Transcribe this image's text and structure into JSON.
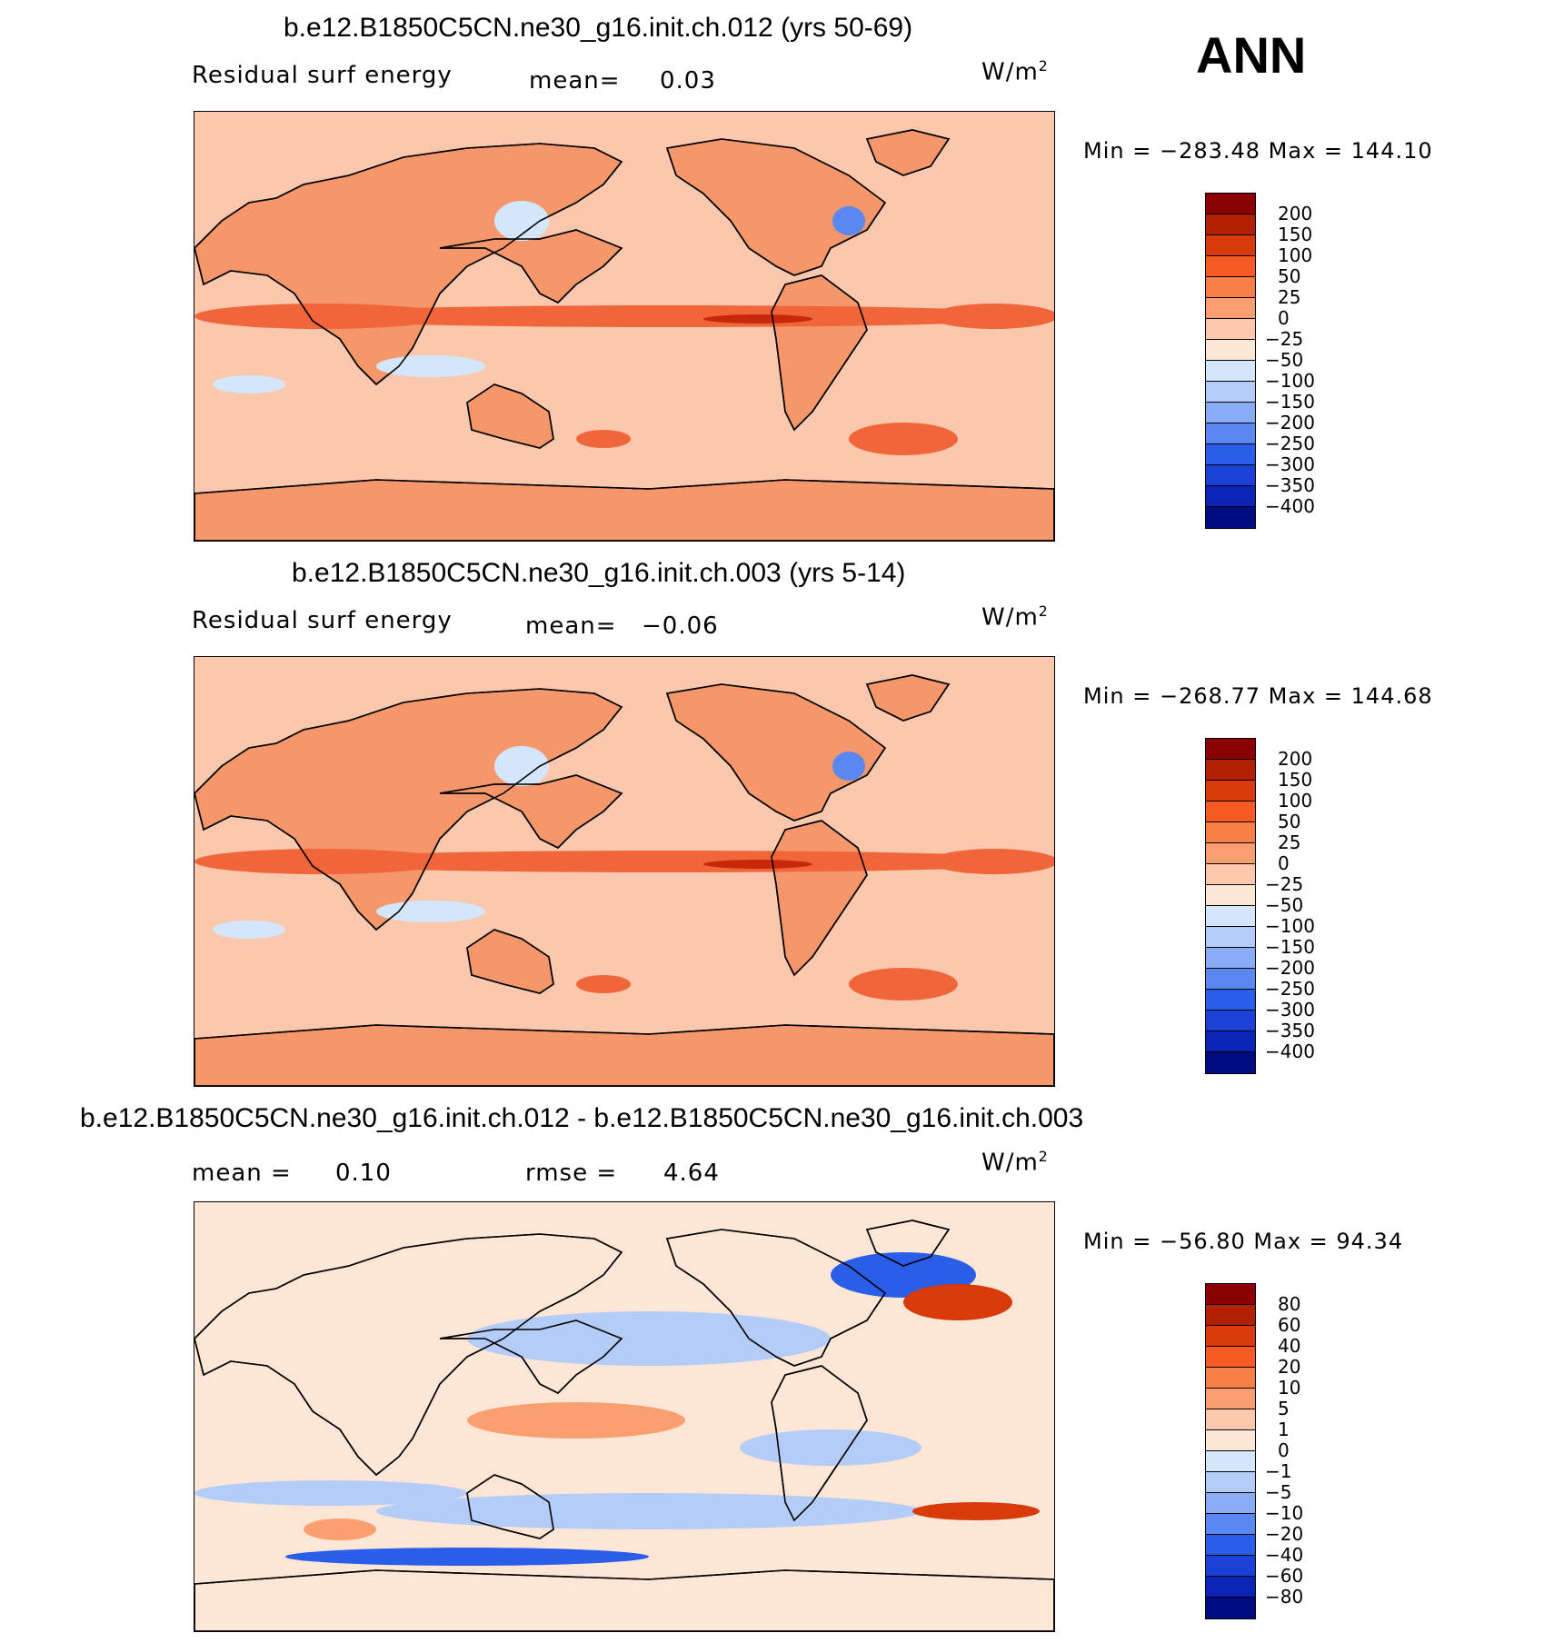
{
  "header": {
    "season": "ANN"
  },
  "panels": [
    {
      "title": "b.e12.B1850C5CN.ne30_g16.init.ch.012 (yrs 50-69)",
      "variable": "Residual surf energy",
      "stat1_label": "mean=",
      "stat1_value": "0.03",
      "units": "W/m",
      "units_exp": "2",
      "minmax": "Min = −283.48 Max = 144.10"
    },
    {
      "title": "b.e12.B1850C5CN.ne30_g16.init.ch.003 (yrs 5-14)",
      "variable": "Residual surf energy",
      "stat1_label": "mean=",
      "stat1_value": "−0.06",
      "units": "W/m",
      "units_exp": "2",
      "minmax": "Min = −268.77 Max = 144.68"
    },
    {
      "title": "b.e12.B1850C5CN.ne30_g16.init.ch.012 - b.e12.B1850C5CN.ne30_g16.init.ch.003",
      "stat1_label": "mean =",
      "stat1_value": "0.10",
      "stat2_label": "rmse =",
      "stat2_value": "4.64",
      "units": "W/m",
      "units_exp": "2",
      "minmax": "Min = −56.80 Max =  94.34"
    }
  ],
  "colorbar_main": {
    "labels": [
      "200",
      "150",
      "100",
      "50",
      "25",
      "0",
      "−25",
      "−50",
      "−100",
      "−150",
      "−200",
      "−250",
      "−300",
      "−350",
      "−400"
    ],
    "colors": [
      "#8b0000",
      "#b22000",
      "#d83a0a",
      "#f55a25",
      "#f88048",
      "#faa070",
      "#fcc8ad",
      "#fde6d6",
      "#d4e6fc",
      "#b4ccf8",
      "#8aaef5",
      "#5b88f0",
      "#2b5ee8",
      "#1a40d5",
      "#0a24b5",
      "#000c80"
    ]
  },
  "colorbar_diff": {
    "labels": [
      "80",
      "60",
      "40",
      "20",
      "10",
      "5",
      "1",
      "0",
      "−1",
      "−5",
      "−10",
      "−20",
      "−40",
      "−60",
      "−80"
    ],
    "colors": [
      "#8b0000",
      "#b22000",
      "#d83a0a",
      "#f55a25",
      "#f88048",
      "#faa070",
      "#fcc8ad",
      "#fde6d6",
      "#d4e6fc",
      "#b4ccf8",
      "#8aaef5",
      "#5b88f0",
      "#2b5ee8",
      "#1a40d5",
      "#0a24b5",
      "#000c80"
    ]
  },
  "map_colors": {
    "base_main": "#fcc8ad",
    "land_main": "#f5976b",
    "equator_band": "#f0663a",
    "equator_core": "#c8280a",
    "cool": "#d4e6fc",
    "cool_strong": "#5b88f0",
    "base_diff": "#fde6d6",
    "diff_blue": "#b4ccf8",
    "diff_blue_strong": "#2b5ee8",
    "diff_red": "#faa070",
    "diff_red_strong": "#d83a0a"
  }
}
